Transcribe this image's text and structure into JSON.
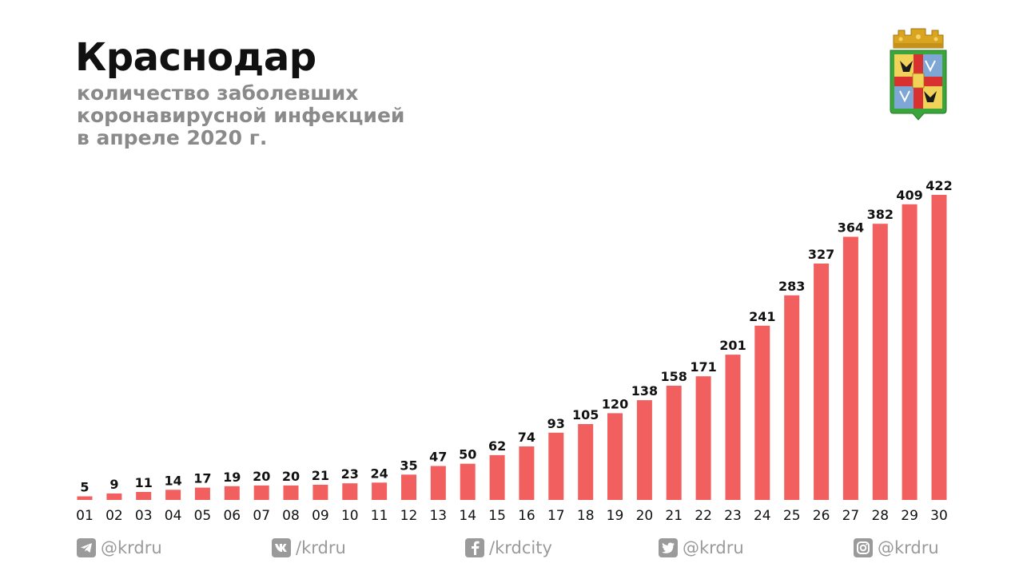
{
  "header": {
    "title": "Краснодар",
    "subtitle_lines": [
      "количество заболевших",
      "коронавирусной инфекцией",
      "в апреле 2020 г."
    ]
  },
  "chart_data": {
    "type": "bar",
    "title": "Краснодар",
    "subtitle": "количество заболевших коронавирусной инфекцией в апреле 2020 г.",
    "categories": [
      "01",
      "02",
      "03",
      "04",
      "05",
      "06",
      "07",
      "08",
      "09",
      "10",
      "11",
      "12",
      "13",
      "14",
      "15",
      "16",
      "17",
      "18",
      "19",
      "20",
      "21",
      "22",
      "23",
      "24",
      "25",
      "26",
      "27",
      "28",
      "29",
      "30"
    ],
    "values": [
      5,
      9,
      11,
      14,
      17,
      19,
      20,
      20,
      21,
      23,
      24,
      35,
      47,
      50,
      62,
      74,
      93,
      105,
      120,
      138,
      158,
      171,
      201,
      241,
      283,
      327,
      364,
      382,
      409,
      422
    ],
    "xlabel": "",
    "ylabel": "",
    "ylim": [
      0,
      422
    ],
    "grid": false,
    "legend": "none",
    "bar_color": "#f25f5f",
    "data_labels": true
  },
  "footer": {
    "telegram": "@krdru",
    "vk": "/krdru",
    "facebook": "/krdcity",
    "twitter": "@krdru",
    "instagram": "@krdru"
  },
  "icons": [
    "telegram-icon",
    "vk-icon",
    "facebook-icon",
    "twitter-icon",
    "instagram-icon",
    "city-emblem"
  ]
}
